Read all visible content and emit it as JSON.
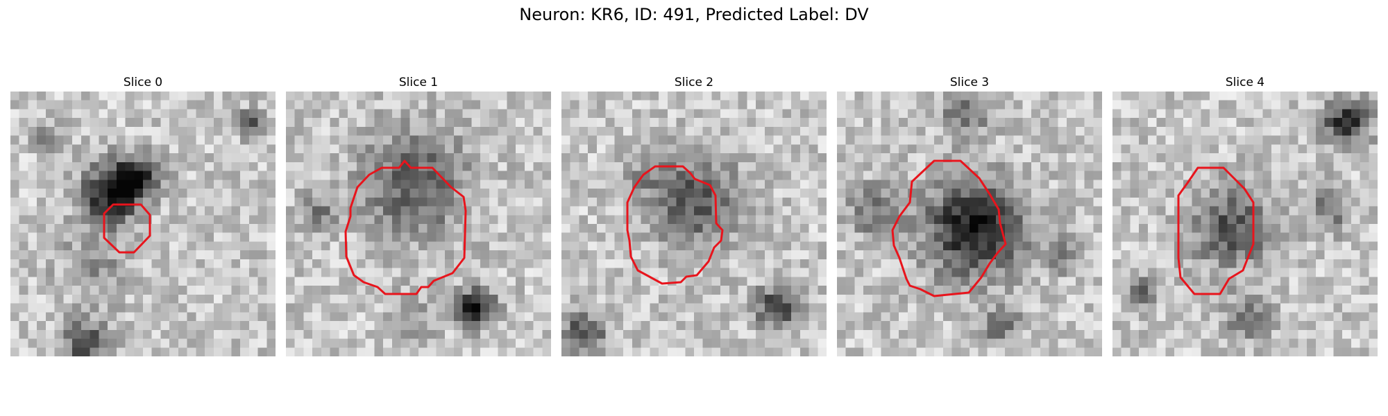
{
  "figure": {
    "suptitle": "Neuron: KR6, ID: 491, Predicted Label: DV",
    "contour_color": "#e8141c",
    "colormap": "gray",
    "panels": [
      {
        "title": "Slice 0"
      },
      {
        "title": "Slice 1"
      },
      {
        "title": "Slice 2"
      },
      {
        "title": "Slice 3"
      },
      {
        "title": "Slice 4"
      }
    ]
  }
}
